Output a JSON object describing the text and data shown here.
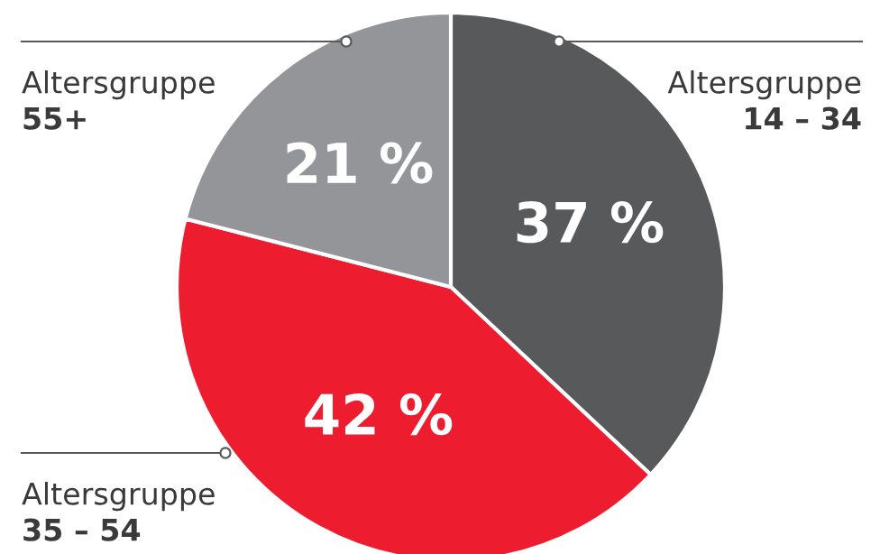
{
  "chart_data": {
    "type": "pie",
    "categories": [
      "Altersgruppe\n14 – 34",
      "Altersgruppe\n35 – 54",
      "Altersgruppe\n55+"
    ],
    "values": [
      37,
      42,
      21
    ],
    "colors": [
      "#58595b",
      "#ed1c2e",
      "#939598"
    ],
    "value_labels": [
      "37 %",
      "42 %",
      "21 %"
    ],
    "legend": false
  }
}
